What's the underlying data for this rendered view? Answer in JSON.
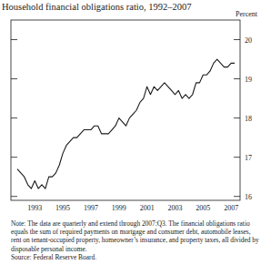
{
  "chart_data": {
    "type": "line",
    "title": "Household financial obligations ratio, 1992–2007",
    "y_label": "Percent",
    "categories": [
      null,
      null,
      null,
      null,
      null,
      "1993",
      null,
      null,
      null,
      null,
      null,
      null,
      null,
      "1995",
      null,
      null,
      null,
      null,
      null,
      null,
      null,
      "1997",
      null,
      null,
      null,
      null,
      null,
      null,
      null,
      "1999",
      null,
      null,
      null,
      null,
      null,
      null,
      null,
      "2001",
      null,
      null,
      null,
      null,
      null,
      null,
      null,
      "2003",
      null,
      null,
      null,
      null,
      null,
      null,
      null,
      "2005",
      null,
      null,
      null,
      null,
      null,
      null,
      null,
      "2007",
      null
    ],
    "values": [
      16.7,
      16.6,
      16.5,
      16.3,
      16.2,
      16.4,
      16.2,
      16.3,
      16.2,
      16.5,
      16.5,
      16.6,
      16.8,
      17.1,
      17.3,
      17.4,
      17.5,
      17.5,
      17.6,
      17.7,
      17.7,
      17.7,
      17.8,
      17.8,
      17.6,
      17.6,
      17.6,
      17.7,
      17.8,
      18.0,
      17.9,
      17.8,
      18.0,
      18.1,
      18.2,
      18.4,
      18.5,
      18.8,
      18.6,
      18.8,
      18.7,
      18.8,
      18.9,
      18.8,
      18.7,
      18.6,
      18.7,
      18.5,
      18.6,
      18.5,
      18.6,
      18.9,
      18.9,
      19.1,
      19.1,
      19.2,
      19.4,
      19.5,
      19.4,
      19.3,
      19.3,
      19.4,
      19.4
    ],
    "color": "#1a1a1a",
    "ylim": [
      15.9,
      20.5
    ],
    "yticks": [
      16,
      17,
      18,
      19,
      20
    ],
    "note": "Note: The data are quarterly and extend through 2007:Q3. The financial obligations ratio equals the sum of required payments on mortgage and consumer debt, automobile leases, rent on tenant-occupied property, homeowner’s insurance, and property taxes, all divided by disposable personal income.",
    "source": "Source: Federal Reserve Board."
  }
}
